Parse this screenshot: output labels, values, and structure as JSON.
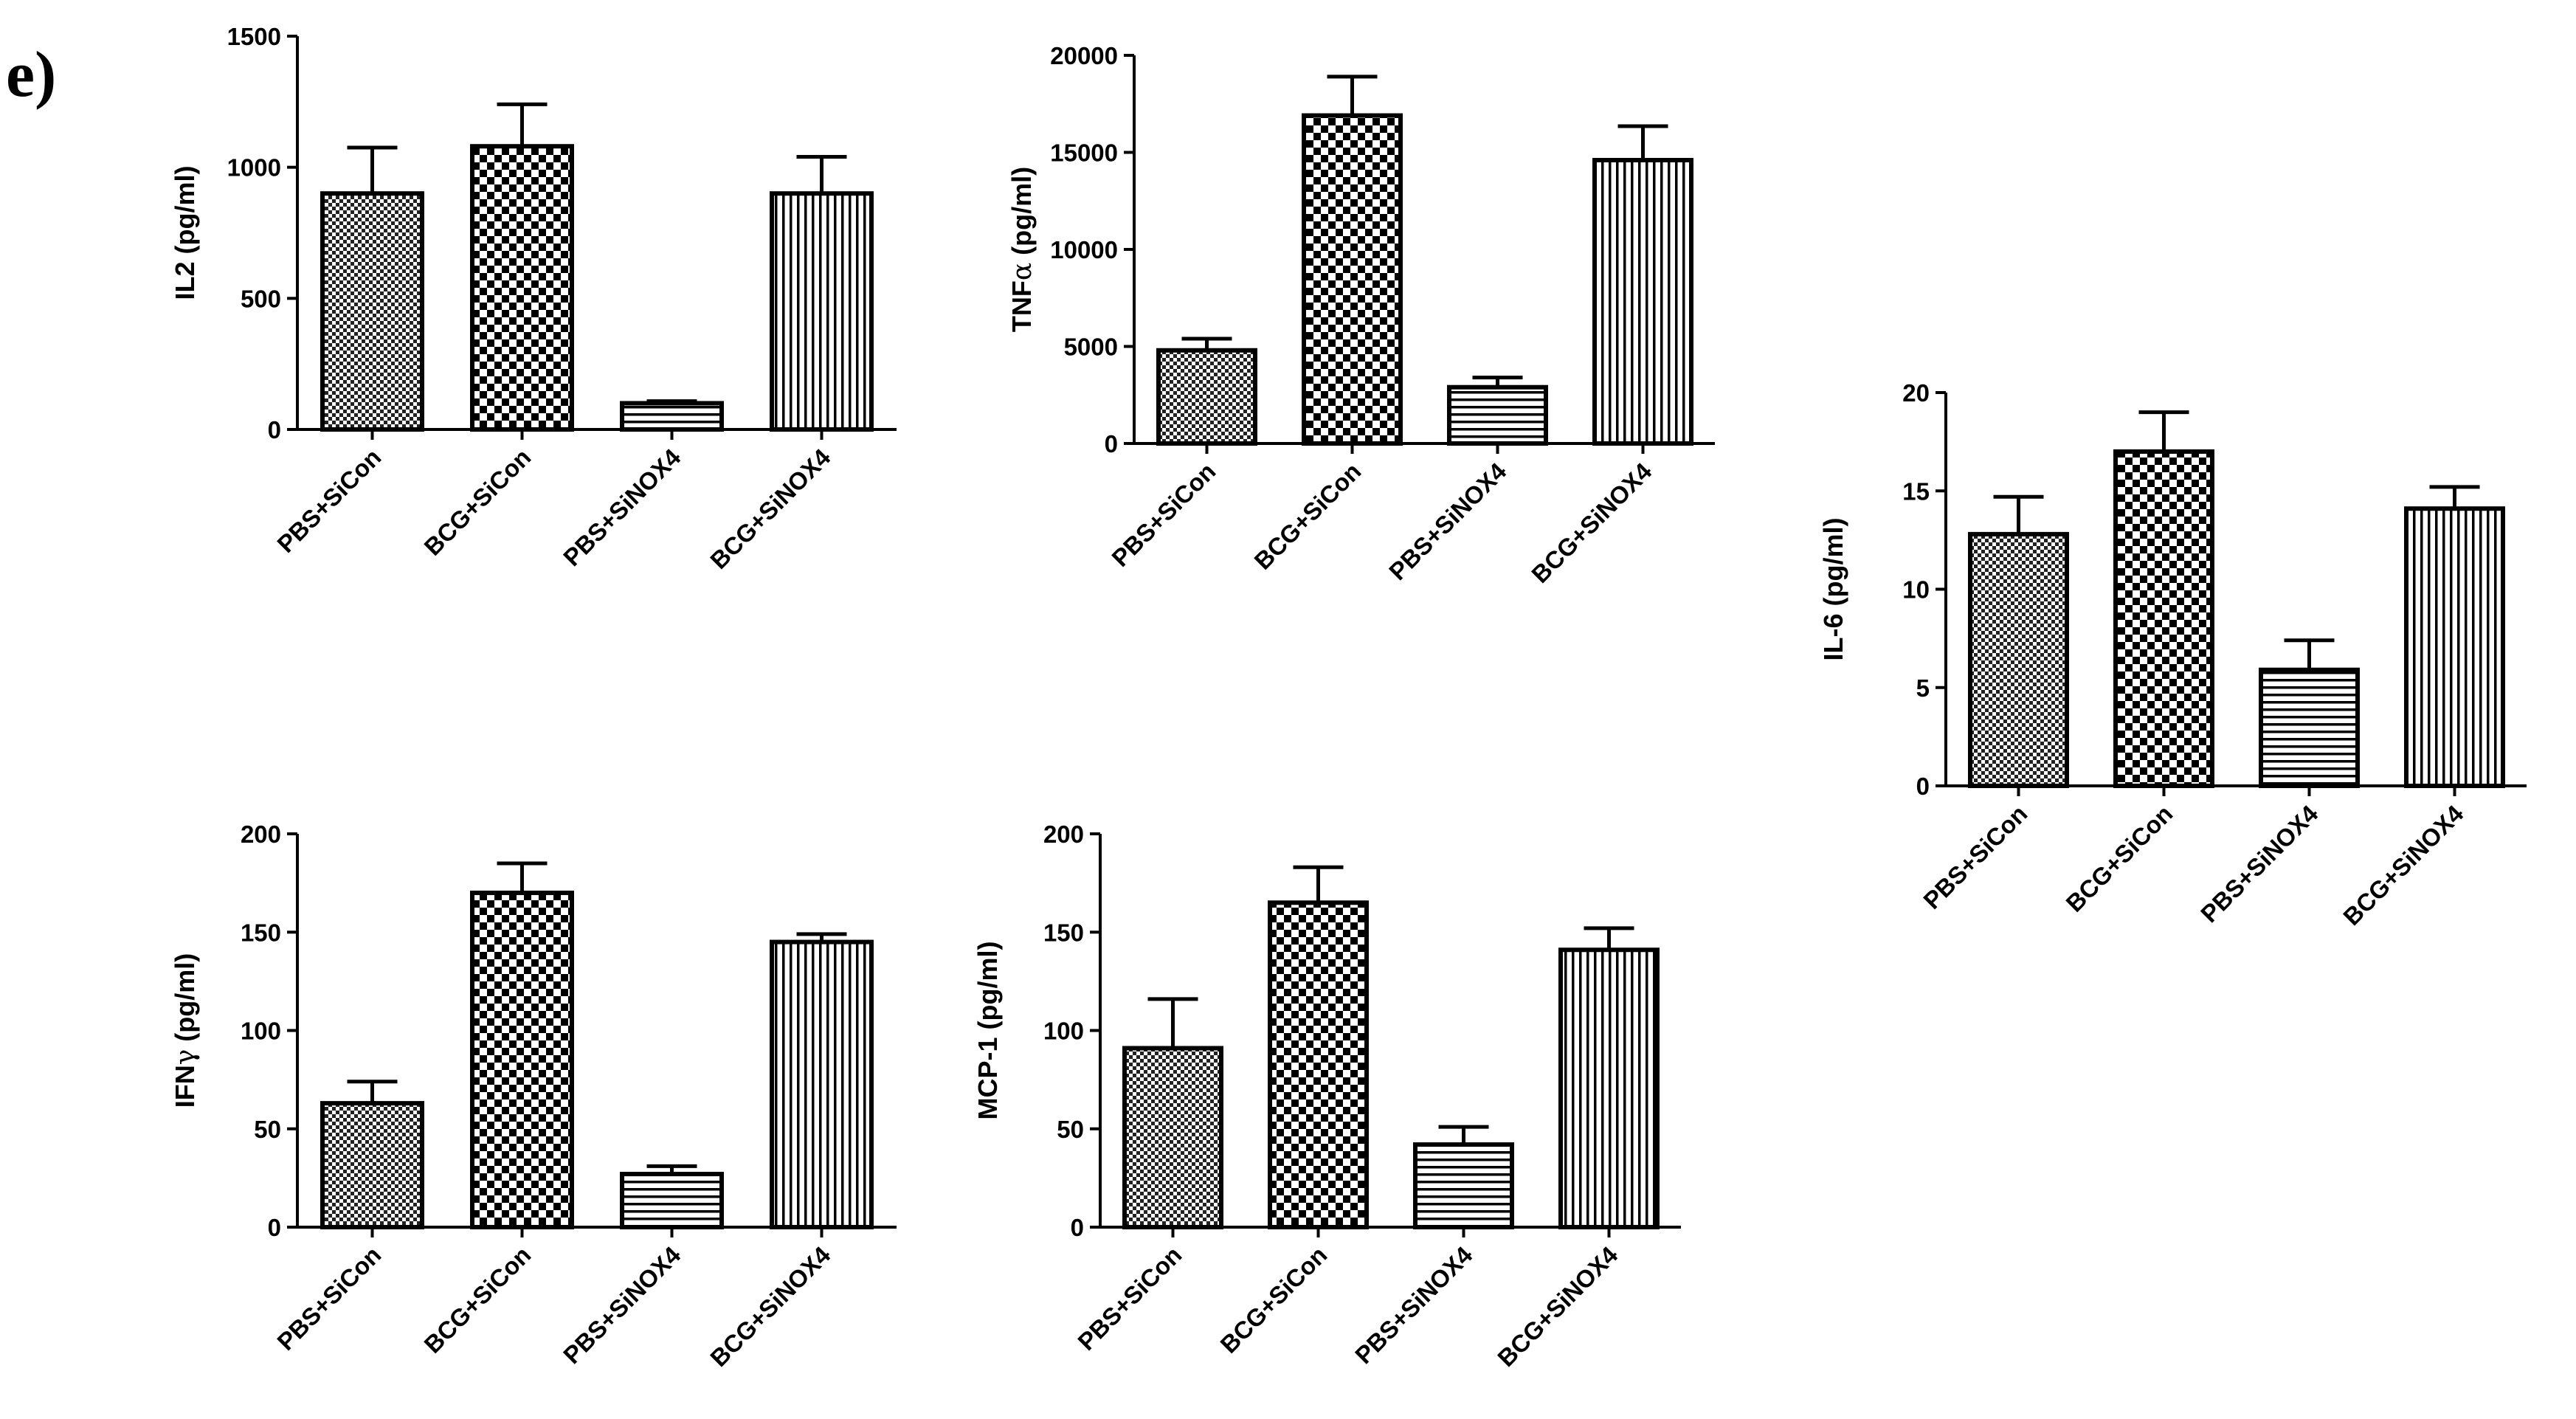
{
  "panel_label": "e)",
  "patterns": [
    "checker-fine",
    "checker-coarse",
    "horizontal-lines",
    "vertical-lines"
  ],
  "colors": {
    "ink": "#000000",
    "background": "#ffffff"
  },
  "chart_data": [
    {
      "id": "il2",
      "type": "bar",
      "ylabel_parts": [
        "IL2",
        " (pg/ml)"
      ],
      "categories": [
        "PBS+SiCon",
        "BCG+SiCon",
        "PBS+SiNOX4",
        "BCG+SiNOX4"
      ],
      "values": [
        900,
        1080,
        100,
        900
      ],
      "errors": [
        175,
        160,
        8,
        140
      ],
      "ylim": [
        0,
        1500
      ],
      "yticks": [
        0,
        500,
        1000,
        1500
      ],
      "ytick_labels": [
        "0",
        "500",
        "1000",
        "1500"
      ]
    },
    {
      "id": "tnfa",
      "type": "bar",
      "ylabel_parts": [
        "TNF",
        "α",
        " (pg/ml)"
      ],
      "categories": [
        "PBS+SiCon",
        "BCG+SiCon",
        "PBS+SiNOX4",
        "BCG+SiNOX4"
      ],
      "values": [
        4800,
        16900,
        2900,
        14600
      ],
      "errors": [
        600,
        2000,
        500,
        1750
      ],
      "ylim": [
        0,
        20000
      ],
      "yticks": [
        0,
        5000,
        10000,
        15000,
        20000
      ],
      "ytick_labels": [
        "0",
        "5000",
        "10000",
        "15000",
        "20000"
      ]
    },
    {
      "id": "il6",
      "type": "bar",
      "ylabel_parts": [
        "IL-6",
        " (pg/ml)"
      ],
      "categories": [
        "PBS+SiCon",
        "BCG+SiCon",
        "PBS+SiNOX4",
        "BCG+SiNOX4"
      ],
      "values": [
        12.8,
        17.0,
        5.9,
        14.1
      ],
      "errors": [
        1.9,
        2.0,
        1.5,
        1.1
      ],
      "ylim": [
        0,
        20
      ],
      "yticks": [
        0,
        5,
        10,
        15,
        20
      ],
      "ytick_labels": [
        "0",
        "5",
        "10",
        "15",
        "20"
      ]
    },
    {
      "id": "ifng",
      "type": "bar",
      "ylabel_parts": [
        "IFN",
        "γ",
        " (pg/ml)"
      ],
      "categories": [
        "PBS+SiCon",
        "BCG+SiCon",
        "PBS+SiNOX4",
        "BCG+SiNOX4"
      ],
      "values": [
        63,
        170,
        27,
        145
      ],
      "errors": [
        11,
        15,
        4,
        4
      ],
      "ylim": [
        0,
        200
      ],
      "yticks": [
        0,
        50,
        100,
        150,
        200
      ],
      "ytick_labels": [
        "0",
        "50",
        "100",
        "150",
        "200"
      ]
    },
    {
      "id": "mcp1",
      "type": "bar",
      "ylabel_parts": [
        "MCP-1",
        " (pg/ml)"
      ],
      "categories": [
        "PBS+SiCon",
        "BCG+SiCon",
        "PBS+SiNOX4",
        "BCG+SiNOX4"
      ],
      "values": [
        91,
        165,
        42,
        141
      ],
      "errors": [
        25,
        18,
        9,
        11
      ],
      "ylim": [
        0,
        200
      ],
      "yticks": [
        0,
        50,
        100,
        150,
        200
      ],
      "ytick_labels": [
        "0",
        "50",
        "100",
        "150",
        "200"
      ]
    }
  ]
}
